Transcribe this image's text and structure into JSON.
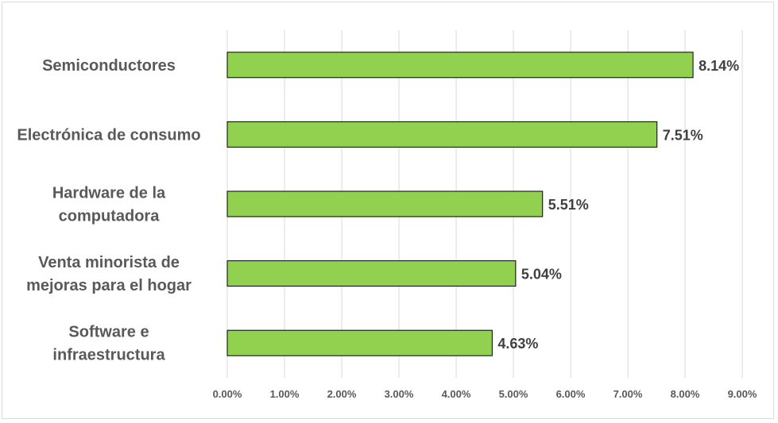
{
  "chart_data": {
    "type": "bar",
    "orientation": "horizontal",
    "categories": [
      [
        "Semiconductores"
      ],
      [
        "Electrónica de consumo"
      ],
      [
        "Hardware de la",
        "computadora"
      ],
      [
        "Venta minorista de",
        "mejoras para el hogar"
      ],
      [
        "Software e",
        "infraestructura"
      ]
    ],
    "values": [
      8.14,
      7.51,
      5.51,
      5.04,
      4.63
    ],
    "value_labels": [
      "8.14%",
      "7.51%",
      "5.51%",
      "5.04%",
      "4.63%"
    ],
    "xlim": [
      0,
      9
    ],
    "x_ticks": [
      "0.00%",
      "1.00%",
      "2.00%",
      "3.00%",
      "4.00%",
      "5.00%",
      "6.00%",
      "7.00%",
      "8.00%",
      "9.00%"
    ],
    "grid": "vertical",
    "bar_color": "#92d050",
    "bar_edge_color": "#000000",
    "legend": "none"
  }
}
